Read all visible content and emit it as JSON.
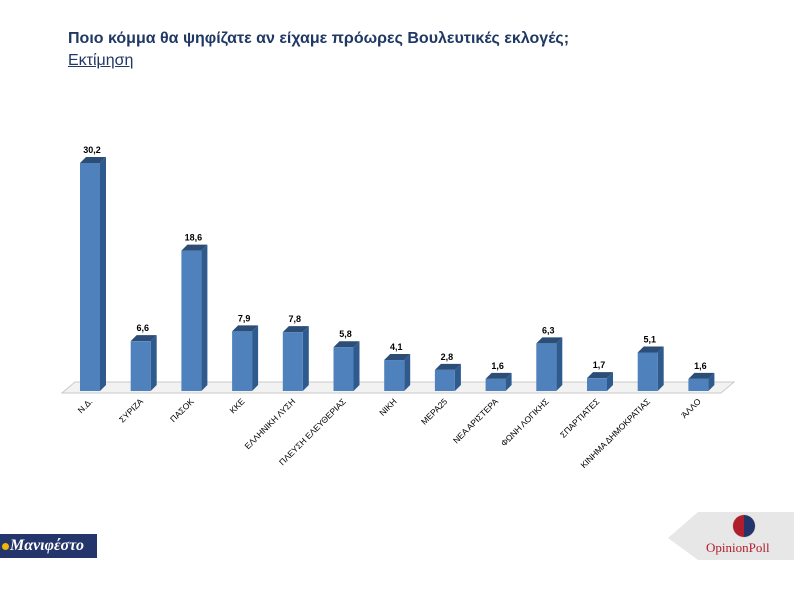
{
  "header": {
    "title": "Ποιο κόμμα θα ψηφίζατε αν είχαμε πρόωρες Βουλευτικές εκλογές;",
    "subtitle": "Εκτίμηση"
  },
  "chart_data": {
    "type": "bar",
    "categories": [
      "Ν.Δ.",
      "ΣΥΡΙΖΑ",
      "ΠΑΣΟΚ",
      "ΚΚΕ",
      "ΕΛΛΗΝΙΚΗ ΛΥΣΗ",
      "ΠΛΕΥΣΗ ΕΛΕΥΘΕΡΙΑΣ",
      "ΝΙΚΗ",
      "ΜΕΡΑ25",
      "ΝΕΑ ΑΡΙΣΤΕΡΑ",
      "ΦΩΝΗ ΛΟΓΙΚΗΣ",
      "ΣΠΑΡΤΙΑΤΕΣ",
      "ΚΙΝΗΜΑ ΔΗΜΟΚΡΑΤΙΑΣ",
      "ΆΛΛΟ"
    ],
    "values": [
      30.2,
      6.6,
      18.6,
      7.9,
      7.8,
      5.8,
      4.1,
      2.8,
      1.6,
      6.3,
      1.7,
      5.1,
      1.6
    ],
    "value_labels": [
      "30,2",
      "6,6",
      "18,6",
      "7,9",
      "7,8",
      "5,8",
      "4,1",
      "2,8",
      "1,6",
      "6,3",
      "1,7",
      "5,1",
      "1,6"
    ],
    "style": "3d",
    "colors": {
      "bar_front": "#4f81bd",
      "bar_side": "#2e5a8e",
      "bar_top": "#2c4d75"
    },
    "grid": false,
    "legend": "none"
  },
  "logos": {
    "left": {
      "text": "Μανιφέστο",
      "background": "#24356b",
      "dot_color": "#f2b705"
    },
    "right": {
      "text_part1": "Opinion",
      "text_part2": "Poll",
      "accent": "#b11e2b"
    }
  }
}
